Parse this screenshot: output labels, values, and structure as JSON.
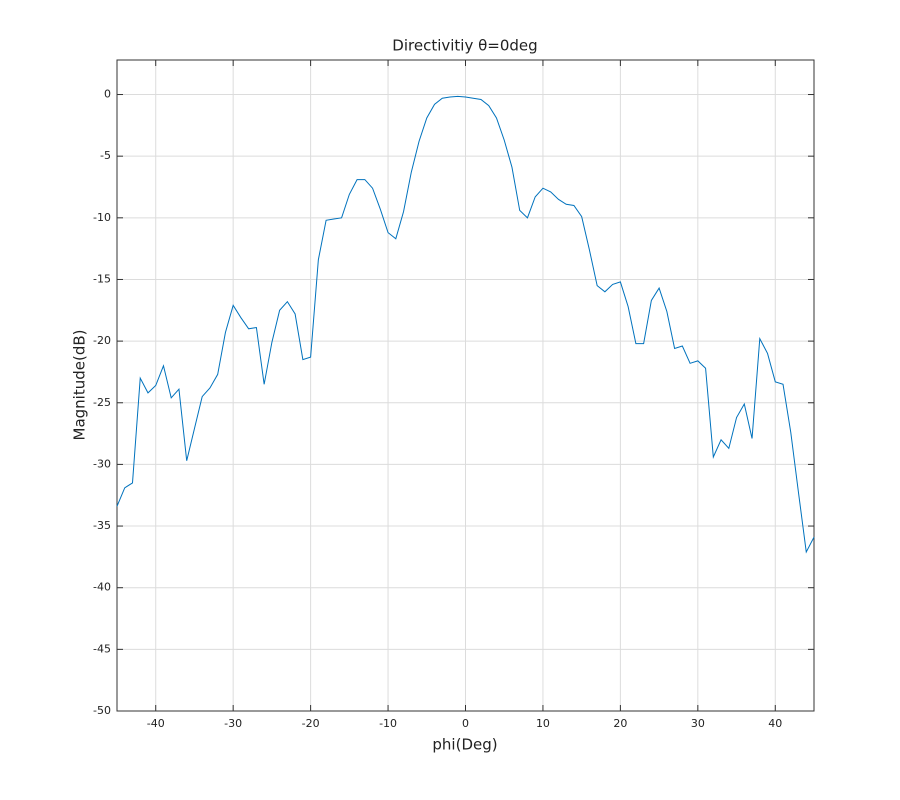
{
  "chart_data": {
    "type": "line",
    "title": "Directivitiy  θ=0deg",
    "x_label": "phi(Deg)",
    "y_label": "Magnitude(dB)",
    "x": [
      -45,
      -44,
      -43,
      -42,
      -41,
      -40,
      -39,
      -38,
      -37,
      -36,
      -35,
      -34,
      -33,
      -32,
      -31,
      -30,
      -29,
      -28,
      -27,
      -26,
      -25,
      -24,
      -23,
      -22,
      -21,
      -20,
      -19,
      -18,
      -17,
      -16,
      -15,
      -14,
      -13,
      -12,
      -11,
      -10,
      -9,
      -8,
      -7,
      -6,
      -5,
      -4,
      -3,
      -2,
      -1,
      0,
      1,
      2,
      3,
      4,
      5,
      6,
      7,
      8,
      9,
      10,
      11,
      12,
      13,
      14,
      15,
      16,
      17,
      18,
      19,
      20,
      21,
      22,
      23,
      24,
      25,
      26,
      27,
      28,
      29,
      30,
      31,
      32,
      33,
      34,
      35,
      36,
      37,
      38,
      39,
      40,
      41,
      42,
      43,
      44,
      45
    ],
    "series": [
      {
        "color": "#0072bd",
        "values": [
          -33.4,
          -31.9,
          -31.5,
          -23.0,
          -24.2,
          -23.6,
          -22.0,
          -24.6,
          -23.9,
          -29.7,
          -27.1,
          -24.5,
          -23.8,
          -22.7,
          -19.3,
          -17.1,
          -18.1,
          -19.0,
          -18.9,
          -23.5,
          -20.1,
          -17.5,
          -16.8,
          -17.8,
          -21.5,
          -21.3,
          -13.4,
          -10.2,
          -10.1,
          -10.0,
          -8.1,
          -6.9,
          -6.9,
          -7.6,
          -9.3,
          -11.2,
          -11.7,
          -9.5,
          -6.3,
          -3.8,
          -1.9,
          -0.8,
          -0.3,
          -0.2,
          -0.15,
          -0.2,
          -0.3,
          -0.4,
          -0.9,
          -1.9,
          -3.7,
          -5.9,
          -9.4,
          -10.0,
          -8.3,
          -7.6,
          -7.9,
          -8.5,
          -8.9,
          -9.0,
          -9.9,
          -12.6,
          -15.5,
          -16.0,
          -15.4,
          -15.2,
          -17.2,
          -20.2,
          -20.2,
          -16.7,
          -15.7,
          -17.6,
          -20.6,
          -20.4,
          -21.8,
          -21.6,
          -22.2,
          -29.4,
          -28.0,
          -28.7,
          -26.2,
          -25.1,
          -27.9,
          -19.8,
          -21.0,
          -23.3,
          -23.5,
          -27.4,
          -32.3,
          -37.1,
          -35.9
        ]
      }
    ],
    "xlim": [
      -45,
      45
    ],
    "xticks": [
      -40,
      -30,
      -20,
      -10,
      0,
      10,
      20,
      30,
      40
    ],
    "ylim": [
      -50,
      2.8
    ],
    "yticks": [
      -50,
      -45,
      -40,
      -35,
      -30,
      -25,
      -20,
      -15,
      -10,
      -5,
      0
    ],
    "grid": true
  }
}
